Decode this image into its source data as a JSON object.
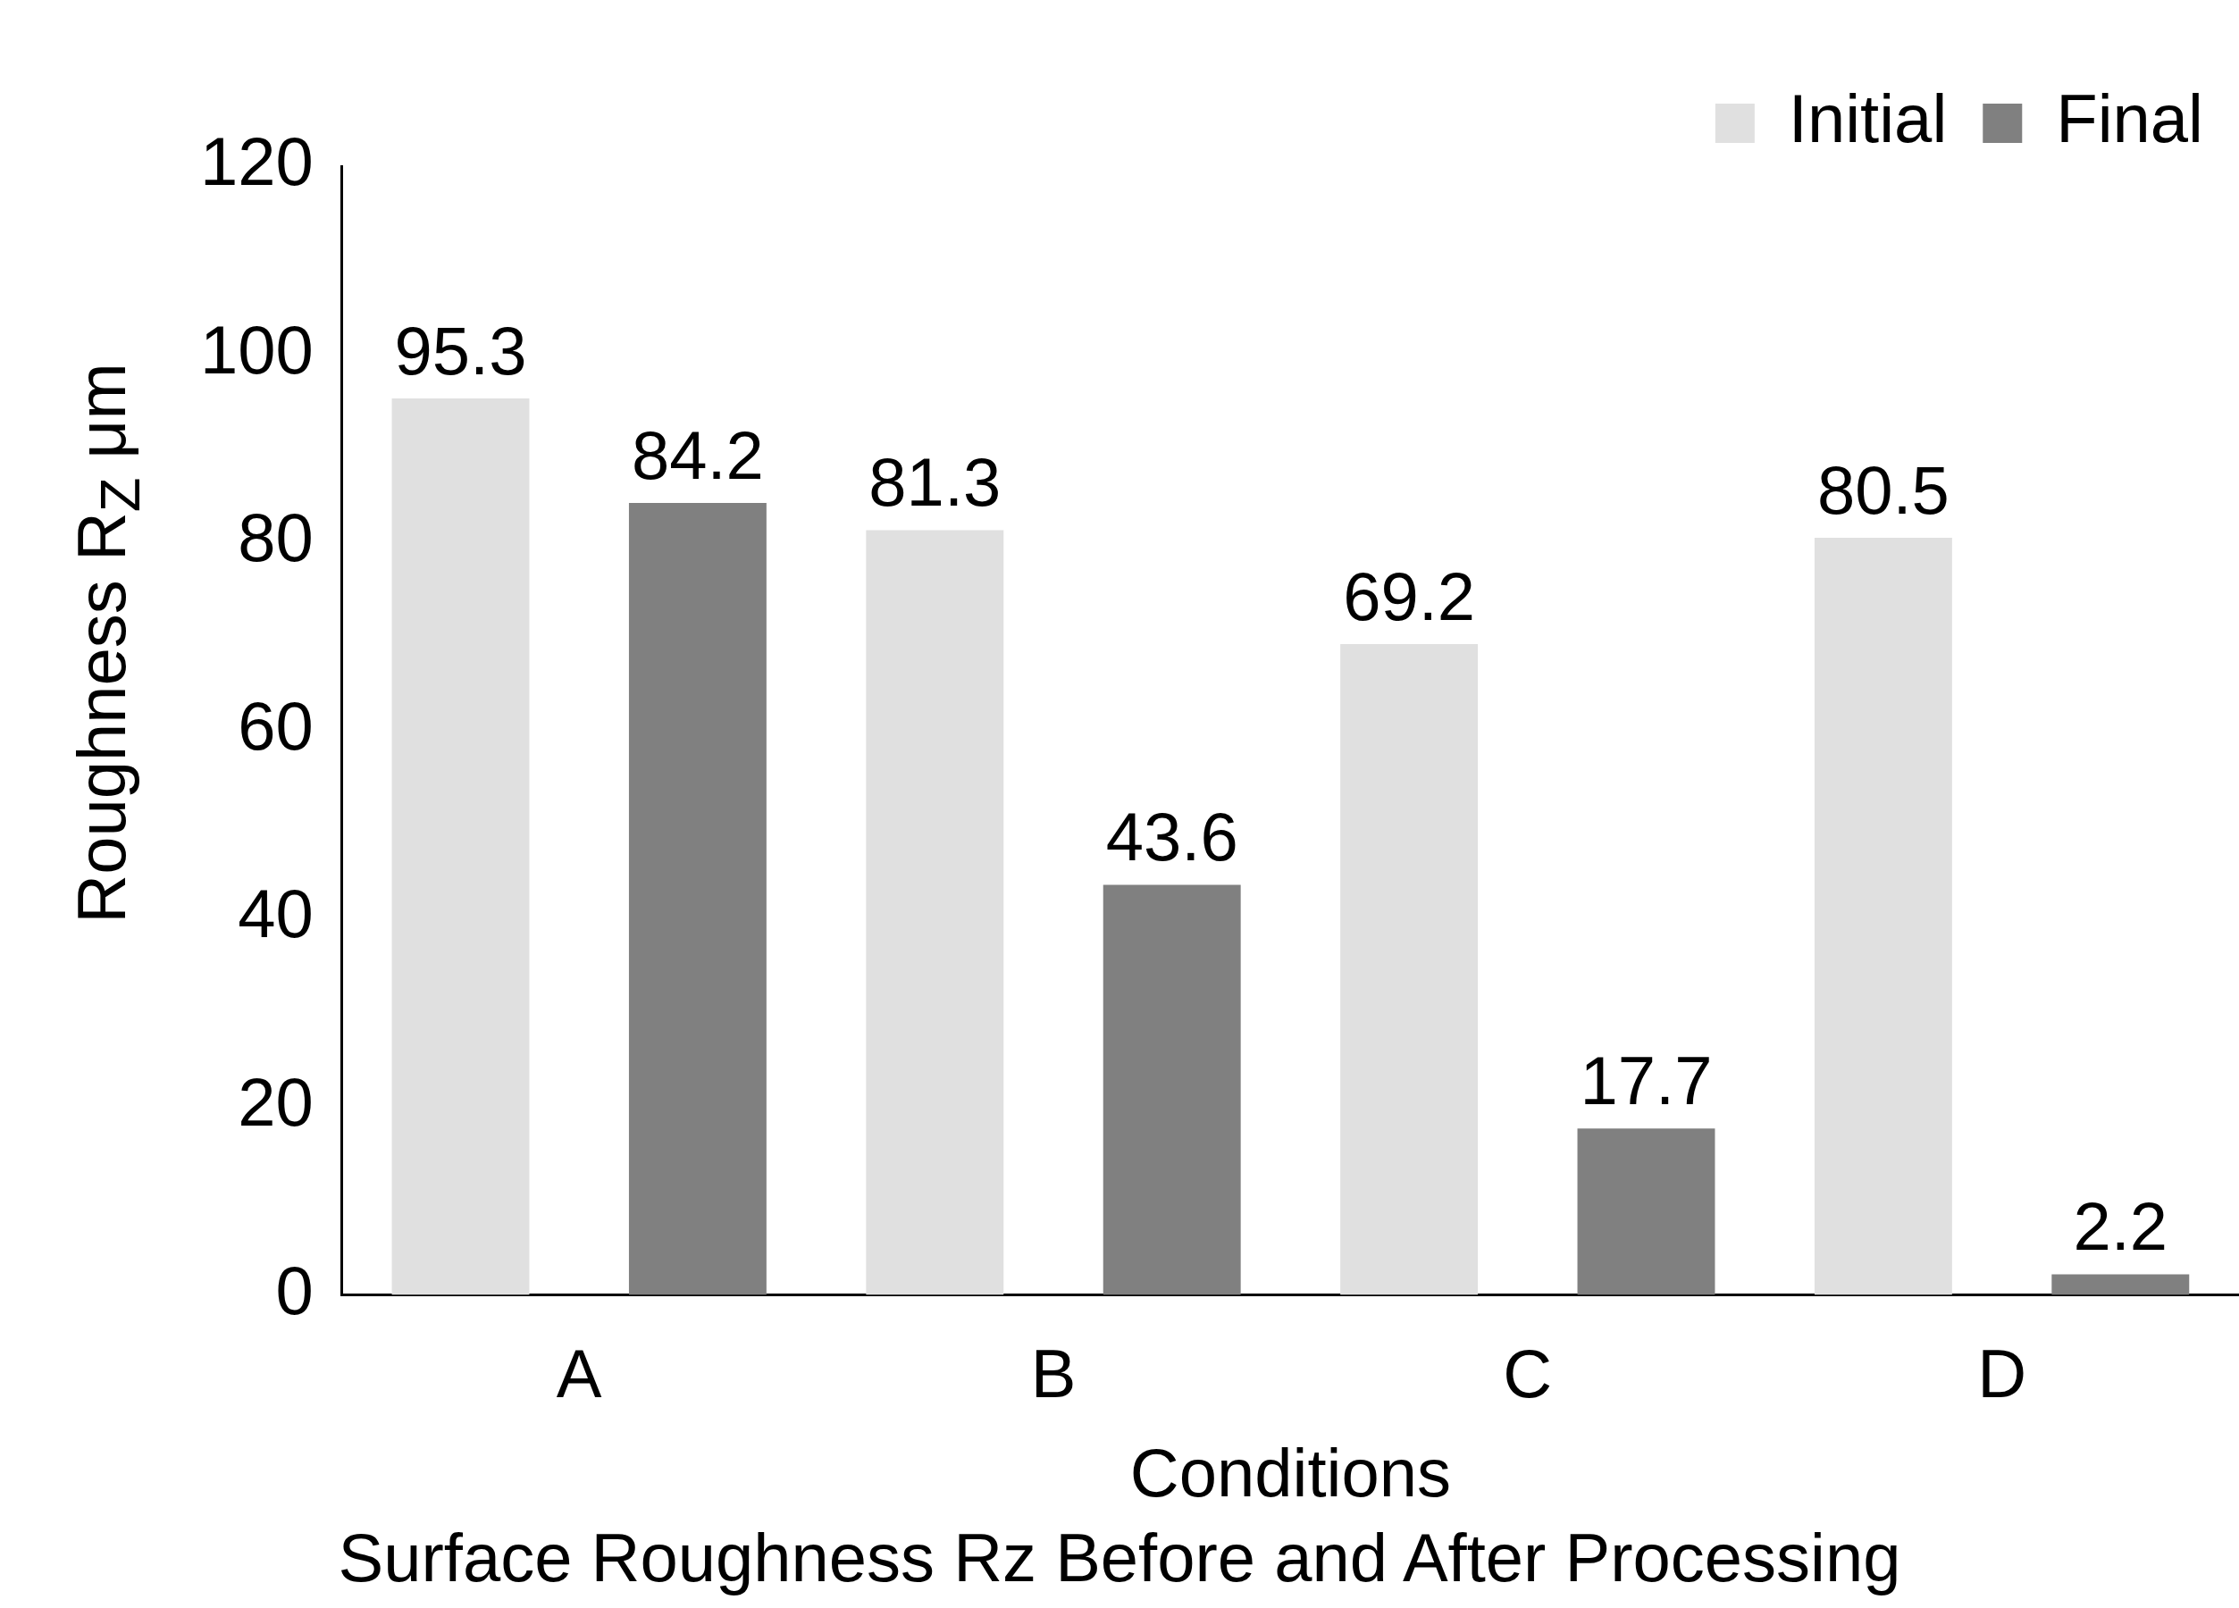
{
  "chart_data": {
    "type": "bar",
    "title": "Surface Roughness Rz Before and After Processing",
    "xlabel": "Conditions",
    "ylabel": "Roughness  R$_{Z}$  μm",
    "categories": [
      "A",
      "B",
      "C",
      "D"
    ],
    "series": [
      {
        "name": "Initial",
        "color": "#e0e0e0",
        "values": [
          95.3,
          81.3,
          69.2,
          80.5
        ]
      },
      {
        "name": "Final",
        "color": "#808080",
        "values": [
          84.2,
          43.6,
          17.7,
          2.2
        ]
      }
    ],
    "ylim": [
      0,
      120
    ],
    "yticks": [
      0,
      20,
      40,
      60,
      80,
      100,
      120
    ],
    "grid": false,
    "legend": "top right",
    "data_labels": true
  }
}
